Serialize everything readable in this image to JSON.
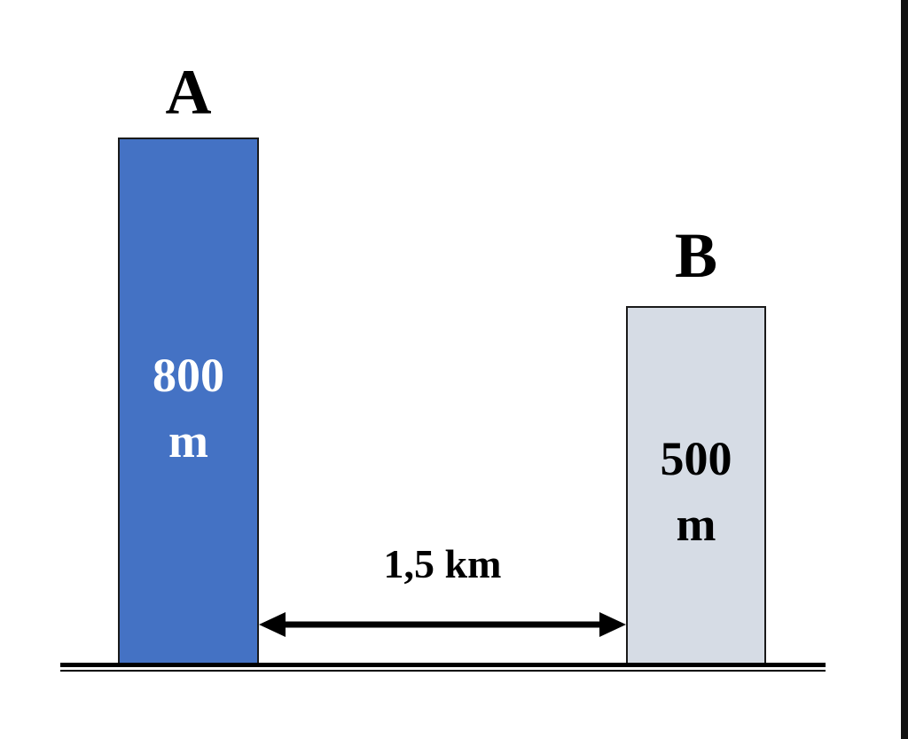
{
  "towers": [
    {
      "label": "A",
      "height_value": "800",
      "height_unit": "m",
      "height_m": 800,
      "fill_color": "#4472C4",
      "text_color": "#FFFFFF"
    },
    {
      "label": "B",
      "height_value": "500",
      "height_unit": "m",
      "height_m": 500,
      "fill_color": "#D6DCE5",
      "text_color": "#000000"
    }
  ],
  "distance": {
    "label": "1,5 km"
  },
  "colors": {
    "ground": "#000000",
    "arrow": "#000000"
  }
}
